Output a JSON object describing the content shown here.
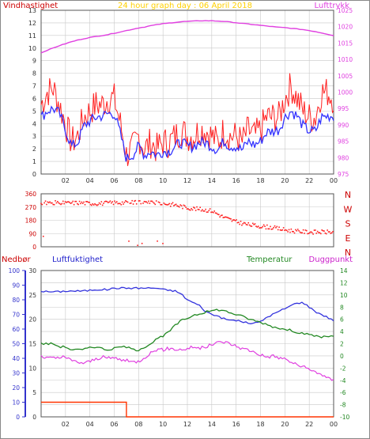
{
  "title": "24 hour graph day : 06 April 2018",
  "colors": {
    "wind": "#ff2020",
    "wind_avg": "#3333ff",
    "pressure": "#e040e0",
    "title": "#ffd000",
    "humidity": "#3333dd",
    "temperature": "#228822",
    "dewpoint": "#e040e0",
    "rain": "#ff3300",
    "rain_axis": "#3333cc",
    "grid": "#c8c8c8",
    "frame": "#555555"
  },
  "x_ticks": [
    "02",
    "04",
    "06",
    "08",
    "10",
    "12",
    "14",
    "16",
    "18",
    "20",
    "22",
    "00"
  ],
  "chart_data": [
    {
      "type": "line",
      "ylabel_left": "Vindhastighet",
      "ylabel_right": "Lufttrykk",
      "y_left_ticks": [
        "0",
        "1",
        "2",
        "3",
        "4",
        "5",
        "6",
        "7",
        "8",
        "9",
        "10",
        "11",
        "12",
        "13"
      ],
      "y_right_ticks": [
        "975",
        "980",
        "985",
        "990",
        "995",
        "1000",
        "1005",
        "1010",
        "1015",
        "1020",
        "1025"
      ],
      "ylim_left": [
        0,
        13
      ],
      "ylim_right": [
        975,
        1025
      ],
      "grid": true,
      "x": [
        0,
        0.5,
        1,
        1.5,
        2,
        2.5,
        3,
        3.5,
        4,
        4.5,
        5,
        5.5,
        6,
        6.5,
        7,
        7.5,
        8,
        8.5,
        9,
        9.5,
        10,
        10.5,
        11,
        11.5,
        12,
        12.5,
        13,
        13.5,
        14,
        14.5,
        15,
        15.5,
        16,
        16.5,
        17,
        17.5,
        18,
        18.5,
        19,
        19.5,
        20,
        20.5,
        21,
        21.5,
        22,
        22.5,
        23,
        23.5,
        24
      ],
      "series": [
        {
          "axis": "left",
          "values": [
            5.5,
            6.5,
            6.8,
            5.5,
            4,
            2.5,
            3,
            4.5,
            5,
            5.5,
            5.5,
            6,
            6,
            4,
            1.5,
            2,
            3,
            2,
            2.5,
            2,
            2.5,
            2.5,
            3,
            3.5,
            3,
            3,
            3.5,
            3.5,
            3,
            2.5,
            3.5,
            3,
            3,
            2.5,
            3.5,
            3,
            3.5,
            4.5,
            4.5,
            4.5,
            6,
            7,
            6,
            5,
            4.5,
            4.5,
            6.5,
            6.5,
            6
          ]
        },
        {
          "axis": "left",
          "values": [
            4.5,
            5,
            5.2,
            4.8,
            3.5,
            2.2,
            2.5,
            3.8,
            4.2,
            4.5,
            4.6,
            4.8,
            4.8,
            3.2,
            1.2,
            1.5,
            2.2,
            1.5,
            1.8,
            1.5,
            1.8,
            1.8,
            2.2,
            2.5,
            2.2,
            2.2,
            2.5,
            2.5,
            2.2,
            1.9,
            2.6,
            2.2,
            2.2,
            1.9,
            2.6,
            2.3,
            2.6,
            3.3,
            3.4,
            3.5,
            4.5,
            5,
            4.6,
            3.8,
            3.4,
            3.4,
            4.5,
            4.6,
            4.6
          ]
        },
        {
          "axis": "right",
          "values": [
            1012,
            1012.8,
            1013.5,
            1014.2,
            1014.8,
            1015.4,
            1015.9,
            1016.3,
            1016.7,
            1017,
            1017.3,
            1017.6,
            1018,
            1018.4,
            1018.8,
            1019.2,
            1019.6,
            1019.9,
            1020.3,
            1020.6,
            1020.9,
            1021.1,
            1021.3,
            1021.5,
            1021.6,
            1021.7,
            1021.8,
            1021.8,
            1021.8,
            1021.7,
            1021.6,
            1021.4,
            1021.2,
            1021,
            1020.8,
            1020.6,
            1020.4,
            1020.2,
            1020,
            1019.8,
            1019.7,
            1019.5,
            1019.3,
            1019.1,
            1018.8,
            1018.5,
            1018.1,
            1017.7,
            1017.3
          ]
        }
      ]
    },
    {
      "type": "scatter",
      "ylabel_right_letters": [
        "N",
        "W",
        "S",
        "E",
        "N"
      ],
      "y_ticks": [
        "360",
        "270",
        "180",
        "90",
        "0"
      ],
      "ylim": [
        0,
        360
      ],
      "grid": true,
      "x": [
        0,
        1,
        2,
        3,
        4,
        5,
        6,
        7,
        8,
        9,
        10,
        11,
        12,
        13,
        14,
        15,
        16,
        17,
        18,
        19,
        20,
        21,
        22,
        23,
        24
      ],
      "values": [
        295,
        300,
        295,
        300,
        295,
        295,
        300,
        300,
        305,
        300,
        295,
        285,
        265,
        255,
        245,
        200,
        170,
        150,
        140,
        130,
        115,
        105,
        100,
        100,
        100
      ]
    },
    {
      "type": "line",
      "labels": {
        "rain": "Nedbør",
        "humidity": "Luftfuktighet",
        "temperature": "Temperatur",
        "dewpoint": "Duggpunkt"
      },
      "y_rain_ticks": [
        "0",
        "10",
        "20",
        "30",
        "40",
        "50",
        "60",
        "70",
        "80",
        "90",
        "100"
      ],
      "y_humidity_ticks": [
        "0",
        "5",
        "10",
        "15",
        "20",
        "25",
        "30"
      ],
      "y_temp_ticks": [
        "-10",
        "-8",
        "-6",
        "-4",
        "-2",
        "0",
        "2",
        "4",
        "6",
        "8",
        "10",
        "12",
        "14"
      ],
      "ylim_rain": [
        0,
        100
      ],
      "ylim_humidity": [
        0,
        30
      ],
      "ylim_temp": [
        -10,
        14
      ],
      "grid": true,
      "x": [
        0,
        0.5,
        1,
        1.5,
        2,
        2.5,
        3,
        3.5,
        4,
        4.5,
        5,
        5.5,
        6,
        6.5,
        7,
        7.5,
        8,
        8.5,
        9,
        9.5,
        10,
        10.5,
        11,
        11.5,
        12,
        12.5,
        13,
        13.5,
        14,
        14.5,
        15,
        15.5,
        16,
        16.5,
        17,
        17.5,
        18,
        18.5,
        19,
        19.5,
        20,
        20.5,
        21,
        21.5,
        22,
        22.5,
        23,
        23.5,
        24
      ],
      "series": [
        {
          "name": "Luftfuktighet",
          "axis": "rain",
          "values": [
            86,
            85.5,
            85.5,
            85.5,
            86,
            86,
            86,
            86,
            86.5,
            87,
            87,
            87,
            88,
            88,
            88,
            88,
            88,
            88,
            88,
            88,
            87,
            86.5,
            86,
            84,
            80,
            78,
            76,
            72,
            70,
            69,
            67,
            66,
            66,
            65,
            64,
            64,
            65,
            68,
            70,
            72,
            74,
            76,
            78,
            78,
            75,
            72,
            70,
            68,
            66
          ]
        },
        {
          "name": "Temperatur",
          "axis": "temp",
          "values": [
            2,
            2,
            2,
            1.5,
            1.5,
            1,
            1,
            1,
            1.5,
            1.5,
            1.2,
            1,
            1.2,
            1.5,
            1.5,
            1,
            1,
            1.5,
            2,
            2.8,
            3.2,
            4,
            5,
            5.8,
            6.2,
            6.7,
            6.9,
            7.2,
            7.4,
            7.6,
            7.4,
            7.1,
            6.8,
            6.5,
            6.1,
            5.8,
            5.5,
            5.2,
            4.8,
            4.6,
            4.3,
            4.2,
            3.9,
            3.7,
            3.4,
            3.3,
            3.1,
            3.2,
            3.3
          ]
        },
        {
          "name": "Duggpunkt",
          "axis": "temp",
          "values": [
            -0.2,
            -0.3,
            -0.4,
            -0.3,
            -0.2,
            -0.8,
            -1,
            -1.2,
            -0.9,
            -0.5,
            -0.2,
            -0.4,
            -0.3,
            -0.6,
            -0.8,
            -1,
            -0.9,
            -0.2,
            0.5,
            1.1,
            1,
            1.2,
            1.1,
            1,
            1.2,
            1.5,
            1.2,
            1.5,
            1.8,
            2.2,
            2.3,
            2,
            1.6,
            1.2,
            1,
            0.6,
            0.2,
            -0.2,
            0,
            -0.3,
            -0.5,
            -1,
            -1.5,
            -1.8,
            -2.3,
            -2.6,
            -3,
            -3.7,
            -4
          ]
        },
        {
          "name": "Nedbør",
          "axis": "rain",
          "values": [
            10,
            10,
            10,
            10,
            10,
            10,
            10,
            10,
            10,
            10,
            10,
            10,
            10,
            10,
            0,
            0,
            0,
            0,
            0,
            0,
            0,
            0,
            0,
            0,
            0,
            0,
            0,
            0,
            0,
            0,
            0,
            0,
            0,
            0,
            0,
            0,
            0,
            0,
            0,
            0,
            0,
            0,
            0,
            0,
            0,
            0,
            0,
            0,
            0
          ]
        }
      ]
    }
  ]
}
